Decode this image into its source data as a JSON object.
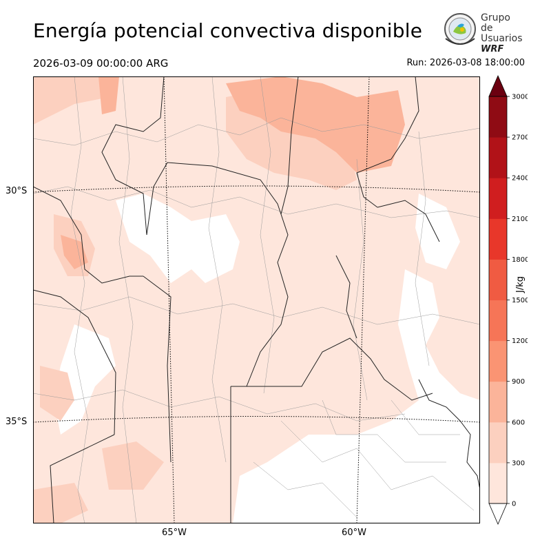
{
  "header": {
    "title": "Energía potencial convectiva disponible",
    "valid_time": "2026-03-09 00:00:00 ARG",
    "run_time": "Run: 2026-03-08 18:00:00"
  },
  "logo": {
    "line1": "Grupo de",
    "line2": "Usuarios",
    "line3": "WRF"
  },
  "map": {
    "lat_labels": [
      "30°S",
      "35°S"
    ],
    "lon_labels": [
      "65°W",
      "60°W"
    ]
  },
  "colorbar": {
    "unit": "J/kg",
    "levels": [
      0,
      300,
      600,
      900,
      1200,
      1500,
      1800,
      2100,
      2400,
      2700,
      3000
    ],
    "colors": [
      "#fee6dc",
      "#fcd0bf",
      "#fbb49a",
      "#fa9473",
      "#f67557",
      "#f05b42",
      "#e8372a",
      "#d01e1f",
      "#b11218",
      "#8f0b14",
      "#6b0010"
    ],
    "over_color": "#6b0010",
    "under_color": "#ffffff"
  }
}
